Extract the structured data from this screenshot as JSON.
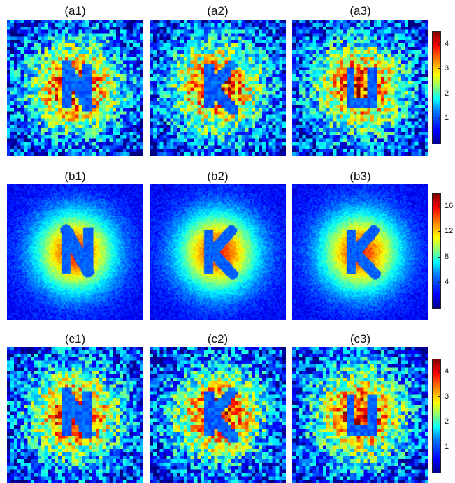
{
  "rows": [
    {
      "panels": [
        {
          "label": "(a1)",
          "letter": "N",
          "style": "noisy"
        },
        {
          "label": "(a2)",
          "letter": "K",
          "style": "noisy"
        },
        {
          "label": "(a3)",
          "letter": "U",
          "style": "noisy"
        }
      ],
      "colorbar": {
        "max": 4.5,
        "ticks": [
          "1",
          "2",
          "3",
          "4"
        ],
        "tick_values": [
          1,
          2,
          3,
          4
        ]
      }
    },
    {
      "panels": [
        {
          "label": "(b1)",
          "letter": "N",
          "style": "smooth"
        },
        {
          "label": "(b2)",
          "letter": "K",
          "style": "smooth"
        },
        {
          "label": "(b3)",
          "letter": "K",
          "style": "smooth"
        }
      ],
      "colorbar": {
        "max": 18,
        "ticks": [
          "4",
          "8",
          "12",
          "16"
        ],
        "tick_values": [
          4,
          8,
          12,
          16
        ]
      }
    },
    {
      "panels": [
        {
          "label": "(c1)",
          "letter": "N",
          "style": "noisy"
        },
        {
          "label": "(c2)",
          "letter": "K",
          "style": "noisy"
        },
        {
          "label": "(c3)",
          "letter": "U",
          "style": "noisy"
        }
      ],
      "colorbar": {
        "max": 4.5,
        "ticks": [
          "1",
          "2",
          "3",
          "4"
        ],
        "tick_values": [
          1,
          2,
          3,
          4
        ]
      }
    }
  ],
  "colormap": "jet"
}
